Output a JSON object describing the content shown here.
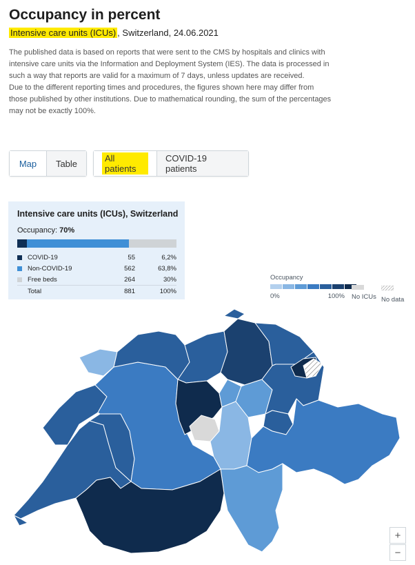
{
  "page": {
    "title": "Occupancy in percent",
    "subtitle_highlight": "Intensive care units (ICUs)",
    "subtitle_rest": ", Switzerland, 24.06.2021",
    "description": [
      "The published data is based on reports that were sent to the CMS by hospitals and clinics with intensive care units via the Information and Deployment System (IES). The data is processed in such a way that reports are valid for a maximum of 7 days, unless updates are received.",
      "Due to the different reporting times and procedures, the figures shown here may differ from those published by other institutions. Due to mathematical rounding, the sum of the percentages may not be exactly 100%."
    ]
  },
  "view_toggle": {
    "map": "Map",
    "table": "Table",
    "active": "map"
  },
  "patient_toggle": {
    "all": "All patients",
    "covid": "COVID-19 patients",
    "active": "all"
  },
  "summary": {
    "title": "Intensive care units (ICUs), Switzerland",
    "occupancy_label": "Occupancy:",
    "occupancy_value": "70%",
    "rows": [
      {
        "label": "COVID-19",
        "count": "55",
        "percent": "6,2%",
        "color": "#0f2f55",
        "share": 0.062
      },
      {
        "label": "Non-COVID-19",
        "count": "562",
        "percent": "63,8%",
        "color": "#3f8fd6",
        "share": 0.638
      },
      {
        "label": "Free beds",
        "count": "264",
        "percent": "30%",
        "color": "#cfd3d6",
        "share": 0.3
      },
      {
        "label": "Total",
        "count": "881",
        "percent": "100%"
      }
    ]
  },
  "legend": {
    "title": "Occupancy",
    "scale_colors": [
      "#b3d0ee",
      "#8ab7e4",
      "#5e9bd6",
      "#3b7bc2",
      "#2a5f9c",
      "#1b416f"
    ],
    "dark_color": "#0f2b4d",
    "min_label": "0%",
    "max_label": "100%",
    "no_icus_label": "No ICUs",
    "no_data_label": "No data",
    "no_icus_color": "#d9d9d9"
  },
  "zoom": {
    "in": "+",
    "out": "−"
  }
}
